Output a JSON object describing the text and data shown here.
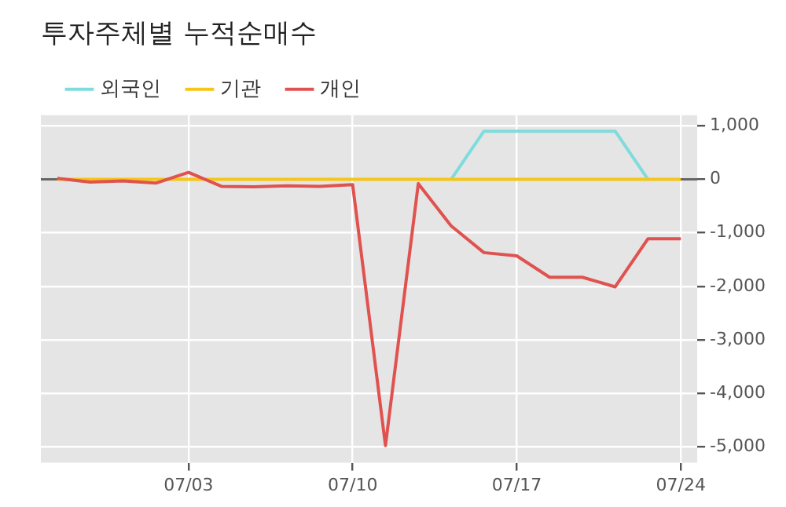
{
  "chart_data": {
    "type": "line",
    "title": "투자주체별 누적순매수",
    "categories": [
      null,
      null,
      null,
      null,
      "07/03",
      null,
      null,
      null,
      null,
      "07/10",
      null,
      null,
      null,
      null,
      "07/17",
      null,
      null,
      null,
      null,
      "07/24"
    ],
    "series": [
      {
        "name": "외국인",
        "color": "#7fdcdc",
        "values": [
          null,
          null,
          null,
          null,
          null,
          null,
          null,
          null,
          null,
          null,
          null,
          null,
          0,
          900,
          900,
          900,
          900,
          900,
          0,
          null
        ]
      },
      {
        "name": "기관",
        "color": "#f5c518",
        "values": [
          0,
          0,
          0,
          0,
          0,
          0,
          0,
          0,
          0,
          0,
          0,
          0,
          0,
          0,
          0,
          0,
          0,
          0,
          0,
          0
        ]
      },
      {
        "name": "개인",
        "color": "#e0524f",
        "values": [
          20,
          -50,
          -30,
          -70,
          130,
          -130,
          -140,
          -120,
          -130,
          -100,
          -4980,
          -80,
          -870,
          -1370,
          -1430,
          -1830,
          -1830,
          -2010,
          -1110,
          -1110
        ]
      }
    ],
    "ylim": [
      -5300,
      1200
    ],
    "yticks": [
      {
        "value": 1000,
        "label": "1,000"
      },
      0,
      {
        "value": -1000,
        "label": "-1,000"
      },
      {
        "value": -2000,
        "label": "-2,000"
      },
      {
        "value": -3000,
        "label": "-3,000"
      },
      {
        "value": -4000,
        "label": "-4,000"
      },
      {
        "value": -5000,
        "label": "-5,000"
      }
    ],
    "ref_lines": [
      {
        "axis": "y",
        "value": 0,
        "color": "#666666"
      }
    ],
    "grid": true,
    "legend": "top left",
    "marker": "none",
    "line_style": "solid"
  }
}
